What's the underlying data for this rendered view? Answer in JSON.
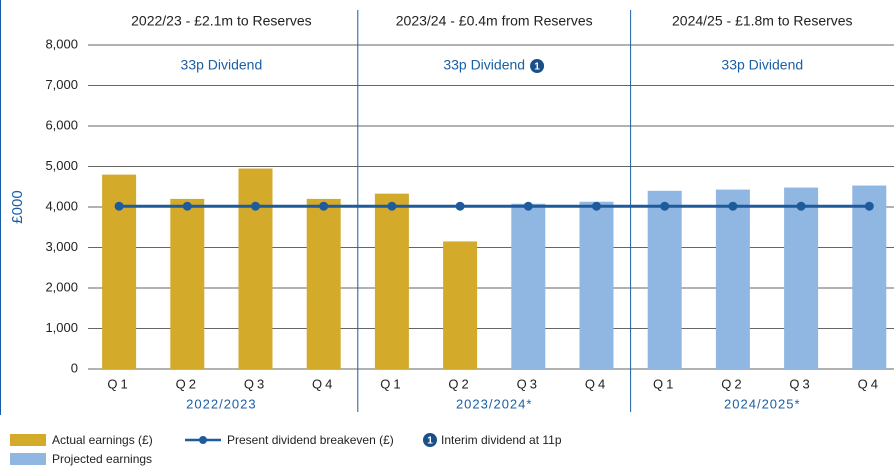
{
  "chart_data": {
    "type": "bar",
    "y_label": "£000",
    "categories": [
      "Q1",
      "Q2",
      "Q3",
      "Q4",
      "Q1",
      "Q2",
      "Q3",
      "Q4",
      "Q1",
      "Q2",
      "Q3",
      "Q4"
    ],
    "series": [
      {
        "name": "Actual earnings (£)",
        "color": "#d4aa2b",
        "type": "bar",
        "values": [
          4800,
          4200,
          4950,
          4200,
          4330,
          3150,
          null,
          null,
          null,
          null,
          null,
          null
        ]
      },
      {
        "name": "Projected earnings",
        "color": "#8fb7e2",
        "type": "bar",
        "values": [
          null,
          null,
          null,
          null,
          null,
          null,
          4080,
          4130,
          4400,
          4430,
          4480,
          4530
        ]
      },
      {
        "name": "Present dividend breakeven (£)",
        "color": "#1f5b9c",
        "type": "line",
        "values": [
          4020,
          4020,
          4020,
          4020,
          4020,
          4020,
          4020,
          4020,
          4020,
          4020,
          4020,
          4020
        ]
      }
    ],
    "groups": [
      {
        "label": "2022/2023",
        "header": "2022/23 - £2.1m to Reserves",
        "dividend": "33p Dividend"
      },
      {
        "label": "2023/2024*",
        "header": "2023/24 - £0.4m from Reserves",
        "dividend": "33p Dividend",
        "marker": "1"
      },
      {
        "label": "2024/2025*",
        "header": "2024/25 - £1.8m to Reserves",
        "dividend": "33p Dividend"
      }
    ],
    "note": {
      "marker": "1",
      "text": "Interim dividend at 11p"
    },
    "ylim": [
      0,
      8000
    ],
    "yticks": [
      0,
      {
        "value": 1000,
        "label": "1,000"
      },
      {
        "value": 2000,
        "label": "2,000"
      },
      {
        "value": 3000,
        "label": "3,000"
      },
      {
        "value": 4000,
        "label": "4,000"
      },
      {
        "value": 5000,
        "label": "5,000"
      },
      {
        "value": 6000,
        "label": "6,000"
      },
      {
        "value": 7000,
        "label": "7,000"
      },
      {
        "value": 8000,
        "label": "8,000"
      }
    ],
    "grid": true
  }
}
